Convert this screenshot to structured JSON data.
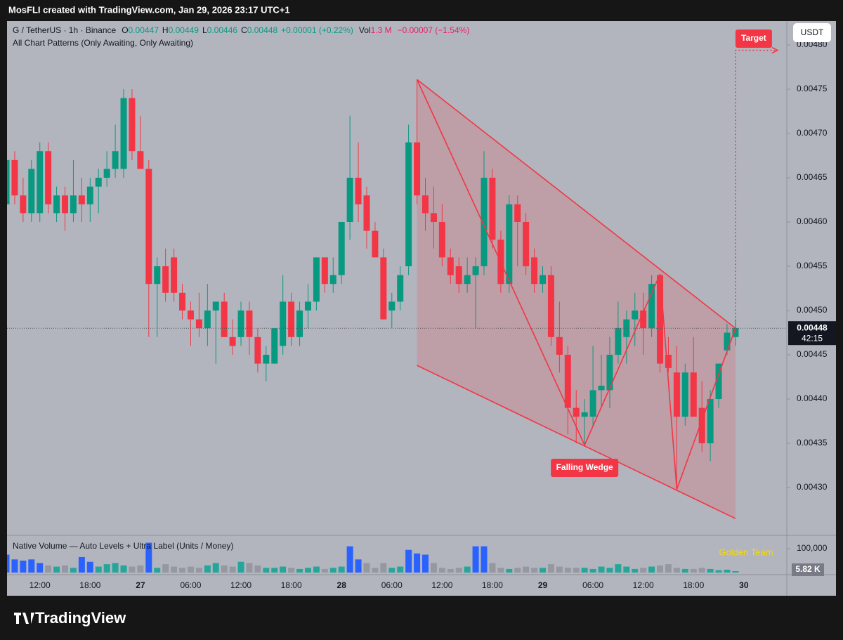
{
  "header": {
    "credit": "MosFLI created with TradingView.com, Jan 29, 2026 23:17 UTC+1"
  },
  "footer": {
    "brand": "TradingView"
  },
  "chart_data": {
    "type": "candlestick",
    "legend": {
      "symbol": "G / TetherUS · 1h · Binance",
      "o": "O",
      "h": "H",
      "l": "L",
      "c": "C",
      "change": "+0.00001 (+0.22%)",
      "vol": "Vol",
      "vol_value": "1.3 M",
      "vol_change": "−0.00007 (−1.54%)"
    },
    "indicator": "All Chart Patterns (Only Awaiting, Only Awaiting)",
    "volume_title": "Native Volume — Auto Levels + Ultra Label (Units / Money)",
    "watermark": "Golden Team",
    "currency": "USDT",
    "countdown": "42:15",
    "up_color": "#089981",
    "down_color": "#f23645",
    "open": [
      0.00462,
      0.00467,
      0.00463,
      0.00461,
      0.00461,
      0.00468,
      0.00461,
      0.00463,
      0.00461,
      0.00463,
      0.00462,
      0.00464,
      0.00465,
      0.00466,
      0.00466,
      0.00474,
      0.00468,
      0.00466,
      0.00453,
      0.00455,
      0.00456,
      0.00452,
      0.0045,
      0.00449,
      0.00448,
      0.0045,
      0.00451,
      0.00447,
      0.00447,
      0.0045,
      0.00447,
      0.00444,
      0.00444,
      0.00446,
      0.00451,
      0.00447,
      0.0045,
      0.00451,
      0.00456,
      0.00453,
      0.00454,
      0.0046,
      0.00465,
      0.00463,
      0.00459,
      0.00456,
      0.0045,
      0.00451,
      0.00455,
      0.00469,
      0.00463,
      0.00461,
      0.0046,
      0.00456,
      0.00455,
      0.00453,
      0.00454,
      0.00455,
      0.00465,
      0.00458,
      0.00453,
      0.00462,
      0.0046,
      0.00456,
      0.00453,
      0.00454,
      0.00447,
      0.00445,
      0.00439,
      0.00438,
      0.00438,
      0.00441,
      0.00441,
      0.00445,
      0.00447,
      0.00449,
      0.0045,
      0.00448,
      0.00454,
      0.00445,
      0.00443,
      0.00438,
      0.00443,
      0.00439,
      0.00435,
      0.0044,
      0.004455,
      0.00447
    ],
    "high": [
      0.00468,
      0.00468,
      0.00465,
      0.00467,
      0.00469,
      0.00469,
      0.00464,
      0.00464,
      0.00467,
      0.00465,
      0.00465,
      0.00466,
      0.00468,
      0.00471,
      0.00475,
      0.00475,
      0.00472,
      0.00467,
      0.00456,
      0.00457,
      0.00457,
      0.00453,
      0.00451,
      0.00452,
      0.00453,
      0.00451,
      0.00452,
      0.00449,
      0.00451,
      0.00451,
      0.00448,
      0.00446,
      0.00448,
      0.00454,
      0.00452,
      0.00451,
      0.00453,
      0.00456,
      0.00456,
      0.00456,
      0.0046,
      0.00472,
      0.00469,
      0.00464,
      0.0046,
      0.00457,
      0.00452,
      0.00455,
      0.00471,
      0.00476,
      0.00465,
      0.00464,
      0.00462,
      0.00457,
      0.00456,
      0.00456,
      0.00456,
      0.00468,
      0.00466,
      0.00459,
      0.00463,
      0.00463,
      0.00461,
      0.00457,
      0.00455,
      0.00455,
      0.00451,
      0.00446,
      0.00441,
      0.0044,
      0.00446,
      0.00445,
      0.00447,
      0.00451,
      0.0045,
      0.00452,
      0.00452,
      0.00454,
      0.00454,
      0.00447,
      0.00446,
      0.00444,
      0.00447,
      0.00442,
      0.00441,
      0.00444,
      0.004485,
      0.00449
    ],
    "low": [
      0.00459,
      0.00462,
      0.0046,
      0.0046,
      0.0046,
      0.00461,
      0.0046,
      0.00459,
      0.0046,
      0.0046,
      0.0046,
      0.00461,
      0.00464,
      0.00465,
      0.00465,
      0.00467,
      0.00466,
      0.00447,
      0.00447,
      0.00451,
      0.00451,
      0.00449,
      0.00446,
      0.00447,
      0.00446,
      0.00444,
      0.00447,
      0.00445,
      0.00446,
      0.00445,
      0.00443,
      0.00442,
      0.00444,
      0.00445,
      0.00446,
      0.00446,
      0.00448,
      0.0045,
      0.00452,
      0.00452,
      0.00453,
      0.00458,
      0.0046,
      0.00457,
      0.00456,
      0.00449,
      0.00448,
      0.0045,
      0.00454,
      0.00462,
      0.00459,
      0.00457,
      0.00455,
      0.00453,
      0.00452,
      0.00452,
      0.00448,
      0.00454,
      0.00457,
      0.00452,
      0.00452,
      0.00455,
      0.00454,
      0.00452,
      0.00452,
      0.00446,
      0.00443,
      0.00436,
      0.00435,
      0.00435,
      0.00437,
      0.00439,
      0.00439,
      0.00444,
      0.00444,
      0.00446,
      0.00445,
      0.00447,
      0.00443,
      0.00443,
      0.0043,
      0.00437,
      0.00438,
      0.00434,
      0.00433,
      0.00439,
      0.00445,
      0.00446
    ],
    "close": [
      0.00467,
      0.00463,
      0.00461,
      0.00466,
      0.00468,
      0.00462,
      0.00463,
      0.00461,
      0.00463,
      0.00462,
      0.00464,
      0.00465,
      0.00466,
      0.00468,
      0.00474,
      0.00468,
      0.00466,
      0.00453,
      0.00455,
      0.00452,
      0.00452,
      0.0045,
      0.00449,
      0.00448,
      0.0045,
      0.00451,
      0.00447,
      0.00446,
      0.0045,
      0.00447,
      0.00444,
      0.00445,
      0.00448,
      0.00451,
      0.00447,
      0.0045,
      0.00451,
      0.00456,
      0.00453,
      0.00454,
      0.0046,
      0.00465,
      0.00462,
      0.00459,
      0.00456,
      0.00449,
      0.00451,
      0.00454,
      0.00469,
      0.00463,
      0.00461,
      0.0046,
      0.00456,
      0.00454,
      0.00453,
      0.00454,
      0.00455,
      0.00465,
      0.00458,
      0.00453,
      0.00462,
      0.0046,
      0.00455,
      0.00453,
      0.00454,
      0.00447,
      0.00445,
      0.00439,
      0.00438,
      0.004385,
      0.00441,
      0.004415,
      0.00445,
      0.00448,
      0.00449,
      0.0045,
      0.00448,
      0.00453,
      0.00444,
      0.004435,
      0.00438,
      0.00443,
      0.00438,
      0.00435,
      0.0044,
      0.00444,
      0.004475,
      0.00448
    ],
    "volume": [
      75000,
      55000,
      50000,
      55000,
      40000,
      30000,
      25000,
      30000,
      20000,
      65000,
      45000,
      25000,
      35000,
      40000,
      30000,
      25000,
      30000,
      125000,
      20000,
      35000,
      25000,
      20000,
      25000,
      20000,
      30000,
      40000,
      30000,
      25000,
      45000,
      40000,
      30000,
      20000,
      20000,
      25000,
      20000,
      15000,
      20000,
      25000,
      15000,
      20000,
      25000,
      110000,
      55000,
      40000,
      20000,
      40000,
      20000,
      25000,
      95000,
      80000,
      75000,
      40000,
      20000,
      15000,
      20000,
      25000,
      110000,
      110000,
      40000,
      20000,
      15000,
      20000,
      25000,
      20000,
      20000,
      35000,
      25000,
      20000,
      20000,
      20000,
      15000,
      25000,
      20000,
      35000,
      25000,
      15000,
      20000,
      25000,
      30000,
      35000,
      20000,
      15000,
      15000,
      20000,
      15000,
      10000,
      12000,
      5820
    ],
    "volume_colors": [
      "#2962ff",
      "#2962ff",
      "#2962ff",
      "#2962ff",
      "#2962ff",
      "#9598a1",
      "#26a69a",
      "#9598a1",
      "#26a69a",
      "#2962ff",
      "#2962ff",
      "#26a69a",
      "#26a69a",
      "#26a69a",
      "#26a69a",
      "#9598a1",
      "#9598a1",
      "#2962ff",
      "#26a69a",
      "#9598a1",
      "#9598a1",
      "#9598a1",
      "#9598a1",
      "#9598a1",
      "#26a69a",
      "#26a69a",
      "#9598a1",
      "#9598a1",
      "#26a69a",
      "#9598a1",
      "#9598a1",
      "#26a69a",
      "#26a69a",
      "#26a69a",
      "#9598a1",
      "#26a69a",
      "#26a69a",
      "#26a69a",
      "#9598a1",
      "#26a69a",
      "#26a69a",
      "#2962ff",
      "#2962ff",
      "#9598a1",
      "#9598a1",
      "#9598a1",
      "#26a69a",
      "#26a69a",
      "#2962ff",
      "#2962ff",
      "#2962ff",
      "#9598a1",
      "#9598a1",
      "#9598a1",
      "#9598a1",
      "#26a69a",
      "#2962ff",
      "#2962ff",
      "#9598a1",
      "#9598a1",
      "#26a69a",
      "#9598a1",
      "#9598a1",
      "#9598a1",
      "#26a69a",
      "#9598a1",
      "#9598a1",
      "#9598a1",
      "#9598a1",
      "#26a69a",
      "#26a69a",
      "#26a69a",
      "#26a69a",
      "#26a69a",
      "#26a69a",
      "#26a69a",
      "#9598a1",
      "#26a69a",
      "#9598a1",
      "#9598a1",
      "#9598a1",
      "#26a69a",
      "#9598a1",
      "#9598a1",
      "#26a69a",
      "#26a69a",
      "#26a69a",
      "#26a69a"
    ],
    "volume_last_label": "5.82 K",
    "ylim": [
      0.0042476,
      0.004827
    ],
    "yticks": [
      {
        "value": 0.0043,
        "label": "0.00430"
      },
      {
        "value": 0.00435,
        "label": "0.00435"
      },
      {
        "value": 0.0044,
        "label": "0.00440"
      },
      {
        "value": 0.00445,
        "label": "0.00445"
      },
      {
        "value": 0.0045,
        "label": "0.00450"
      },
      {
        "value": 0.00455,
        "label": "0.00455"
      },
      {
        "value": 0.0046,
        "label": "0.00460"
      },
      {
        "value": 0.00465,
        "label": "0.00465"
      },
      {
        "value": 0.0047,
        "label": "0.00470"
      },
      {
        "value": 0.00475,
        "label": "0.00475"
      },
      {
        "value": 0.0048,
        "label": "0.00480"
      }
    ],
    "volume_ylim": [
      0,
      153000
    ],
    "volume_yticks": [
      {
        "value": 100000,
        "label": "100,000"
      }
    ],
    "xticks": [
      {
        "value": 4,
        "label": "12:00"
      },
      {
        "value": 10,
        "label": "18:00"
      },
      {
        "value": 16,
        "label": "27"
      },
      {
        "value": 22,
        "label": "06:00"
      },
      {
        "value": 28,
        "label": "12:00"
      },
      {
        "value": 34,
        "label": "18:00"
      },
      {
        "value": 40,
        "label": "28"
      },
      {
        "value": 46,
        "label": "06:00"
      },
      {
        "value": 52,
        "label": "12:00"
      },
      {
        "value": 58,
        "label": "18:00"
      },
      {
        "value": 64,
        "label": "29"
      },
      {
        "value": 70,
        "label": "06:00"
      },
      {
        "value": 76,
        "label": "12:00"
      },
      {
        "value": 82,
        "label": "18:00"
      },
      {
        "value": 88,
        "label": "30"
      }
    ],
    "wedge": {
      "label": "Falling Wedge",
      "color": "#f23645",
      "upper": {
        "x": [
          49,
          87
        ],
        "y": [
          0.004761,
          0.00448
        ]
      },
      "lower": {
        "x": [
          49,
          87
        ],
        "y": [
          0.004438,
          0.004265
        ]
      },
      "zigzag": {
        "x": [
          49,
          69,
          78,
          80,
          87
        ],
        "y": [
          0.004761,
          0.004348,
          0.004541,
          0.004298,
          0.00448
        ]
      }
    },
    "target": {
      "label": "Target",
      "value": 0.004794
    }
  }
}
